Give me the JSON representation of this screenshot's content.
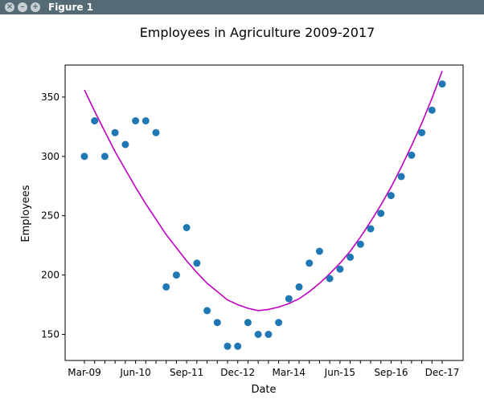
{
  "window": {
    "title": "Figure 1",
    "close_icon": "close-icon",
    "minimize_icon": "minimize-icon",
    "maximize_icon": "maximize-icon"
  },
  "colors": {
    "titlebar": "#546a74",
    "points": "#1f77b4",
    "curve": "#bf00bf"
  },
  "chart_data": {
    "type": "scatter",
    "title": "Employees in Agriculture 2009-2017",
    "xlabel": "Date",
    "ylabel": "Employees",
    "xtick_labels": [
      "Mar-09",
      "Jun-10",
      "Sep-11",
      "Dec-12",
      "Mar-14",
      "Jun-15",
      "Sep-16",
      "Dec-17"
    ],
    "yticks": [
      150,
      200,
      250,
      300,
      350
    ],
    "ylim": [
      128,
      377
    ],
    "x": [
      "Mar-09",
      "Jun-09",
      "Sep-09",
      "Dec-09",
      "Mar-10",
      "Jun-10",
      "Sep-10",
      "Dec-10",
      "Mar-11",
      "Jun-11",
      "Sep-11",
      "Dec-11",
      "Mar-12",
      "Jun-12",
      "Sep-12",
      "Dec-12",
      "Mar-13",
      "Jun-13",
      "Sep-13",
      "Dec-13",
      "Mar-14",
      "Jun-14",
      "Sep-14",
      "Dec-14",
      "Mar-15",
      "Jun-15",
      "Sep-15",
      "Dec-15",
      "Mar-16",
      "Jun-16",
      "Sep-16",
      "Dec-16",
      "Mar-17",
      "Jun-17",
      "Sep-17",
      "Dec-17"
    ],
    "series": [
      {
        "kind": "scatter",
        "values": [
          300,
          330,
          300,
          320,
          310,
          330,
          330,
          320,
          190,
          200,
          240,
          210,
          170,
          160,
          140,
          140,
          160,
          150,
          150,
          160,
          180,
          190,
          210,
          220,
          197,
          205,
          215,
          226,
          239,
          252,
          267,
          283,
          301,
          320,
          339,
          361
        ]
      },
      {
        "kind": "line",
        "values": [
          356,
          338,
          321,
          304,
          289,
          274,
          260,
          247,
          234,
          223,
          212,
          202,
          193,
          186,
          179,
          175,
          172,
          170,
          171,
          173,
          176,
          180,
          186,
          193,
          201,
          210,
          220,
          232,
          245,
          259,
          274,
          291,
          309,
          328,
          349,
          372
        ]
      }
    ],
    "grid": false
  }
}
